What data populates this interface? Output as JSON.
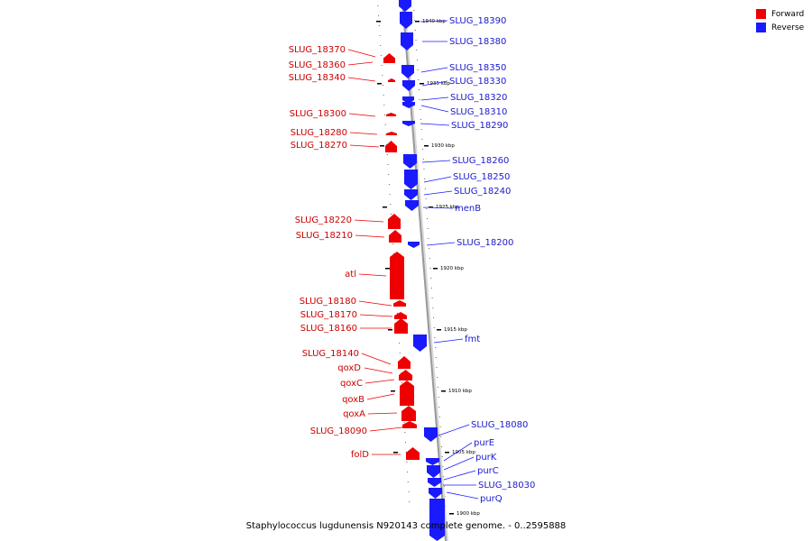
{
  "caption": "Staphylococcus lugdunensis N920143 complete genome. - 0..2595888",
  "legend": [
    {
      "label": "Forward",
      "color": "#ee0000"
    },
    {
      "label": "Reverse",
      "color": "#1a1aff"
    }
  ],
  "colors": {
    "forward": "#ee0000",
    "reverse": "#1a1aff",
    "backbone": "#999999"
  },
  "scale_ticks": [
    "1940 kbp",
    "1935 kbp",
    "1930 kbp",
    "1925 kbp",
    "1920 kbp",
    "1915 kbp",
    "1910 kbp",
    "1905 kbp",
    "1900 kbp"
  ],
  "forward_genes": [
    "SLUG_18370",
    "SLUG_18360",
    "SLUG_18340",
    "SLUG_18300",
    "SLUG_18280",
    "SLUG_18270",
    "SLUG_18220",
    "SLUG_18210",
    "atl",
    "SLUG_18180",
    "SLUG_18170",
    "SLUG_18160",
    "SLUG_18140",
    "qoxD",
    "qoxC",
    "qoxB",
    "qoxA",
    "SLUG_18090",
    "folD"
  ],
  "reverse_genes": [
    "SLUG_18390",
    "SLUG_18380",
    "SLUG_18350",
    "SLUG_18330",
    "SLUG_18320",
    "SLUG_18310",
    "SLUG_18290",
    "SLUG_18260",
    "SLUG_18250",
    "SLUG_18240",
    "menB",
    "SLUG_18200",
    "fmt",
    "SLUG_18080",
    "purE",
    "purK",
    "purC",
    "SLUG_18030",
    "purQ"
  ]
}
